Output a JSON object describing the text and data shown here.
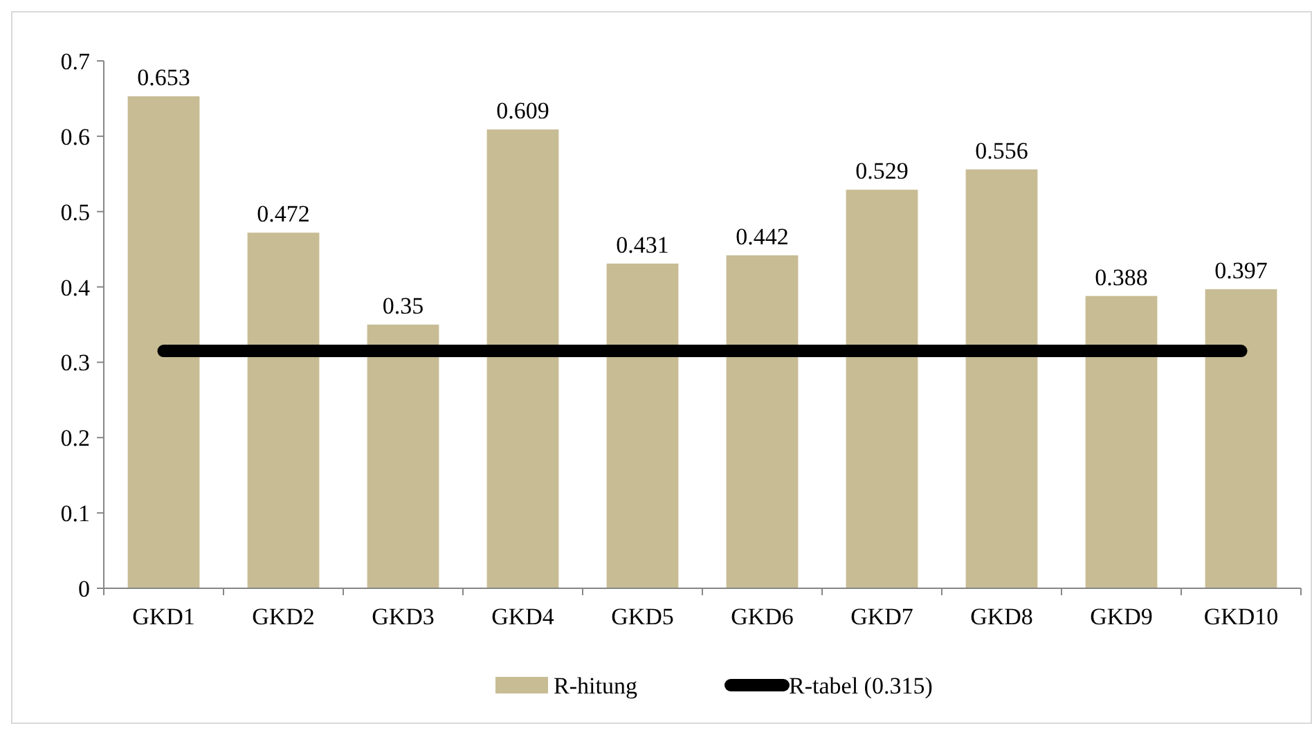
{
  "chart_data": {
    "type": "bar",
    "categories": [
      "GKD1",
      "GKD2",
      "GKD3",
      "GKD4",
      "GKD5",
      "GKD6",
      "GKD7",
      "GKD8",
      "GKD9",
      "GKD10"
    ],
    "series": [
      {
        "name": "R-hitung",
        "color": "#c8bc94",
        "values": [
          0.653,
          0.472,
          0.35,
          0.609,
          0.431,
          0.442,
          0.529,
          0.556,
          0.388,
          0.397
        ],
        "value_labels": [
          "0.653",
          "0.472",
          "0.35",
          "0.609",
          "0.431",
          "0.442",
          "0.529",
          "0.556",
          "0.388",
          "0.397"
        ]
      },
      {
        "name": "R-tabel (0.315)",
        "type": "line",
        "color": "#000000",
        "values": [
          0.315,
          0.315,
          0.315,
          0.315,
          0.315,
          0.315,
          0.315,
          0.315,
          0.315,
          0.315
        ]
      }
    ],
    "ylim": [
      0,
      0.7
    ],
    "yticks": [
      0,
      0.1,
      0.2,
      0.3,
      0.4,
      0.5,
      0.6,
      0.7
    ],
    "grid": false,
    "legend": "bottom",
    "marker": "none",
    "line_style": "solid"
  }
}
